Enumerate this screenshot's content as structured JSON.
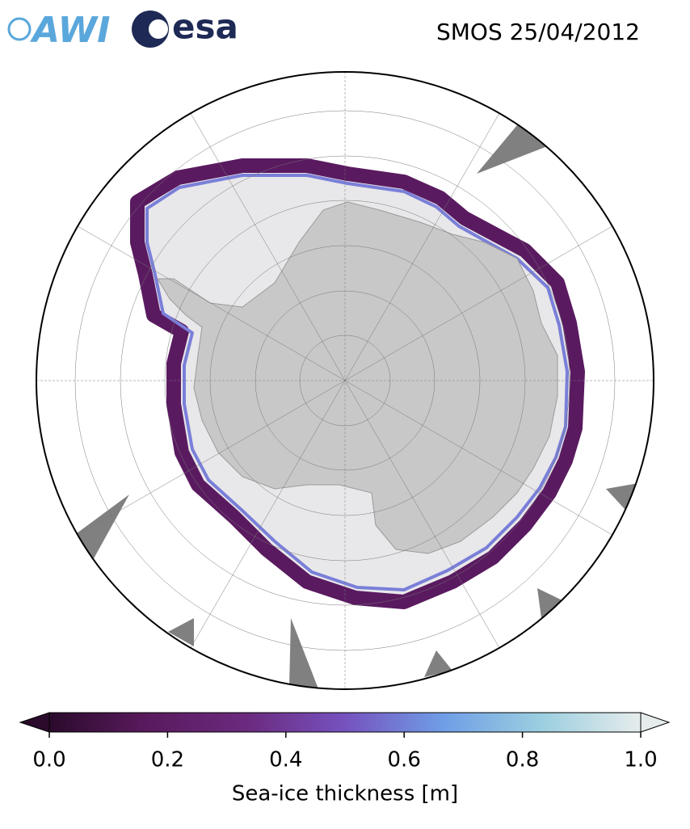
{
  "logos": {
    "awi": "AWI",
    "esa": "esa"
  },
  "title": "SMOS 25/04/2012",
  "colorbar": {
    "label": "Sea-ice thickness [m]",
    "lim": [
      0,
      1.0
    ],
    "ticks": [
      {
        "value": 0,
        "label": "0.0"
      },
      0.2,
      0.4,
      0.6,
      0.8,
      {
        "value": 1.0,
        "label": "1.0"
      }
    ],
    "colormap": [
      "#2a0b2c",
      "#5a1a5e",
      "#6b2a7e",
      "#7652bf",
      "#6f9ee6",
      "#9ccfe0",
      "#e6ecec"
    ]
  }
}
